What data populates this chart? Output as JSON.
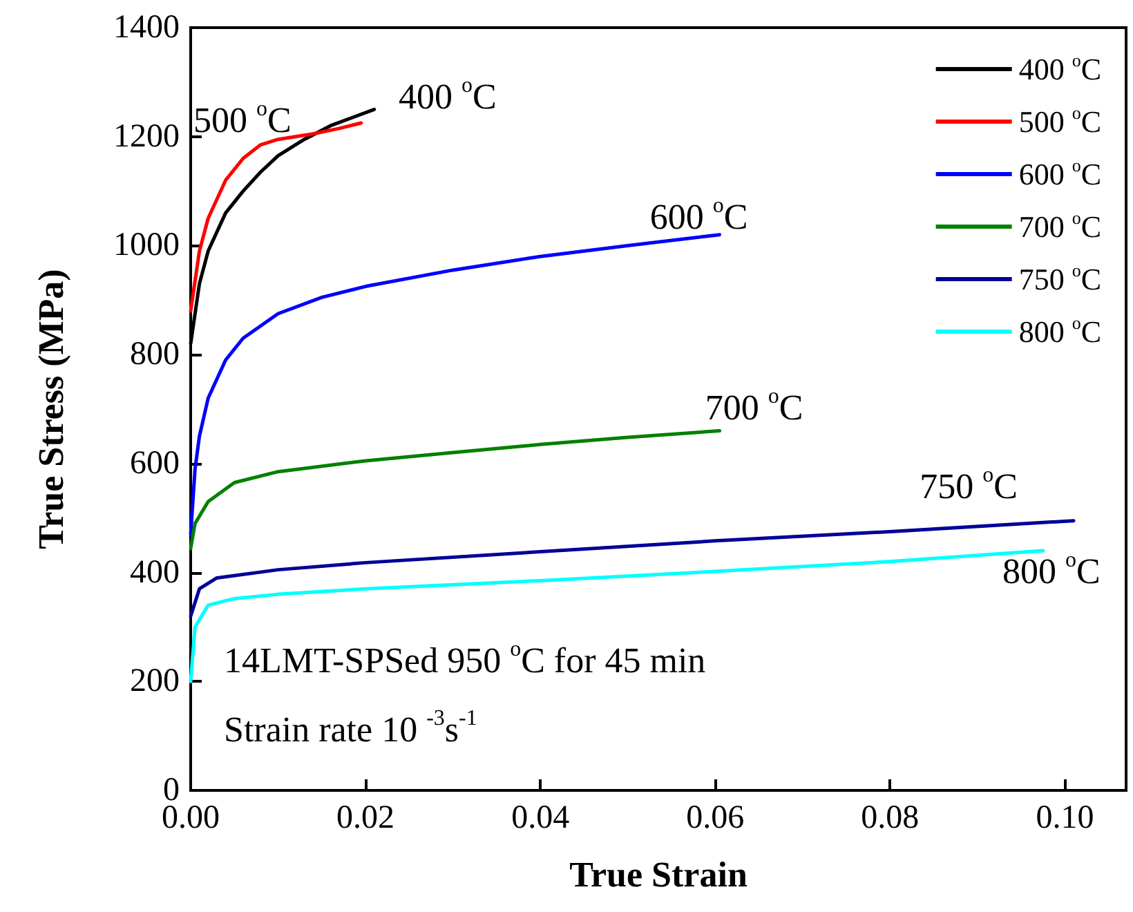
{
  "chart_data": {
    "type": "line",
    "xlabel": "True Strain",
    "ylabel": "True Stress (MPa)",
    "xlim": [
      0,
      0.107
    ],
    "ylim": [
      0,
      1400
    ],
    "xticks": [
      {
        "value": 0,
        "label": "0.00"
      },
      {
        "value": 0.02,
        "label": "0.02"
      },
      {
        "value": 0.04,
        "label": "0.04"
      },
      {
        "value": 0.06,
        "label": "0.06"
      },
      {
        "value": 0.08,
        "label": "0.08"
      },
      {
        "value": 0.1,
        "label": "0.10"
      }
    ],
    "yticks": [
      0,
      200,
      400,
      600,
      800,
      1000,
      1200,
      1400
    ],
    "grid": false,
    "legend": "top right",
    "marker": "none",
    "line_style": "solid",
    "series": [
      {
        "name": "400 $^{o}$C",
        "color": "#000000",
        "x": [
          0,
          0.001,
          0.002,
          0.004,
          0.006,
          0.008,
          0.01,
          0.013,
          0.016,
          0.021
        ],
        "values": [
          820,
          930,
          990,
          1060,
          1100,
          1135,
          1165,
          1195,
          1220,
          1250
        ]
      },
      {
        "name": "500 $^{o}$C",
        "color": "#ff0000",
        "x": [
          0,
          0.001,
          0.002,
          0.004,
          0.006,
          0.008,
          0.01,
          0.012,
          0.014,
          0.017,
          0.0195
        ],
        "values": [
          880,
          990,
          1050,
          1120,
          1160,
          1185,
          1195,
          1200,
          1205,
          1215,
          1225
        ]
      },
      {
        "name": "600 $^{o}$C",
        "color": "#0000ff",
        "x": [
          0,
          0.0005,
          0.001,
          0.002,
          0.004,
          0.006,
          0.01,
          0.015,
          0.02,
          0.03,
          0.04,
          0.05,
          0.0605
        ],
        "values": [
          470,
          590,
          650,
          720,
          790,
          830,
          875,
          905,
          925,
          955,
          980,
          1000,
          1020
        ]
      },
      {
        "name": "700 $^{o}$C",
        "color": "#008000",
        "x": [
          0,
          0.0005,
          0.002,
          0.005,
          0.01,
          0.02,
          0.03,
          0.04,
          0.05,
          0.0605
        ],
        "values": [
          444,
          490,
          530,
          565,
          585,
          605,
          620,
          635,
          648,
          660
        ]
      },
      {
        "name": "750 $^{o}$C",
        "color": "#000099",
        "x": [
          0,
          0.001,
          0.003,
          0.01,
          0.02,
          0.04,
          0.06,
          0.08,
          0.101
        ],
        "values": [
          320,
          370,
          390,
          405,
          418,
          438,
          458,
          475,
          495
        ]
      },
      {
        "name": "800 $^{o}$C",
        "color": "#00ffff",
        "x": [
          0,
          0.0005,
          0.002,
          0.005,
          0.01,
          0.02,
          0.04,
          0.06,
          0.08,
          0.0975
        ],
        "values": [
          200,
          300,
          340,
          352,
          360,
          370,
          385,
          402,
          420,
          440
        ]
      }
    ],
    "annotations": [
      "400 $^{o}$C",
      "500 $^{o}$C",
      "600 $^{o}$C",
      "700 $^{o}$C",
      "750 $^{o}$C",
      "800 $^{o}$C",
      "14LMT-SPSed 950 $^{o}$C for 45 min",
      "Strain rate 10 $^{-3}$s$^{-1}$"
    ]
  }
}
